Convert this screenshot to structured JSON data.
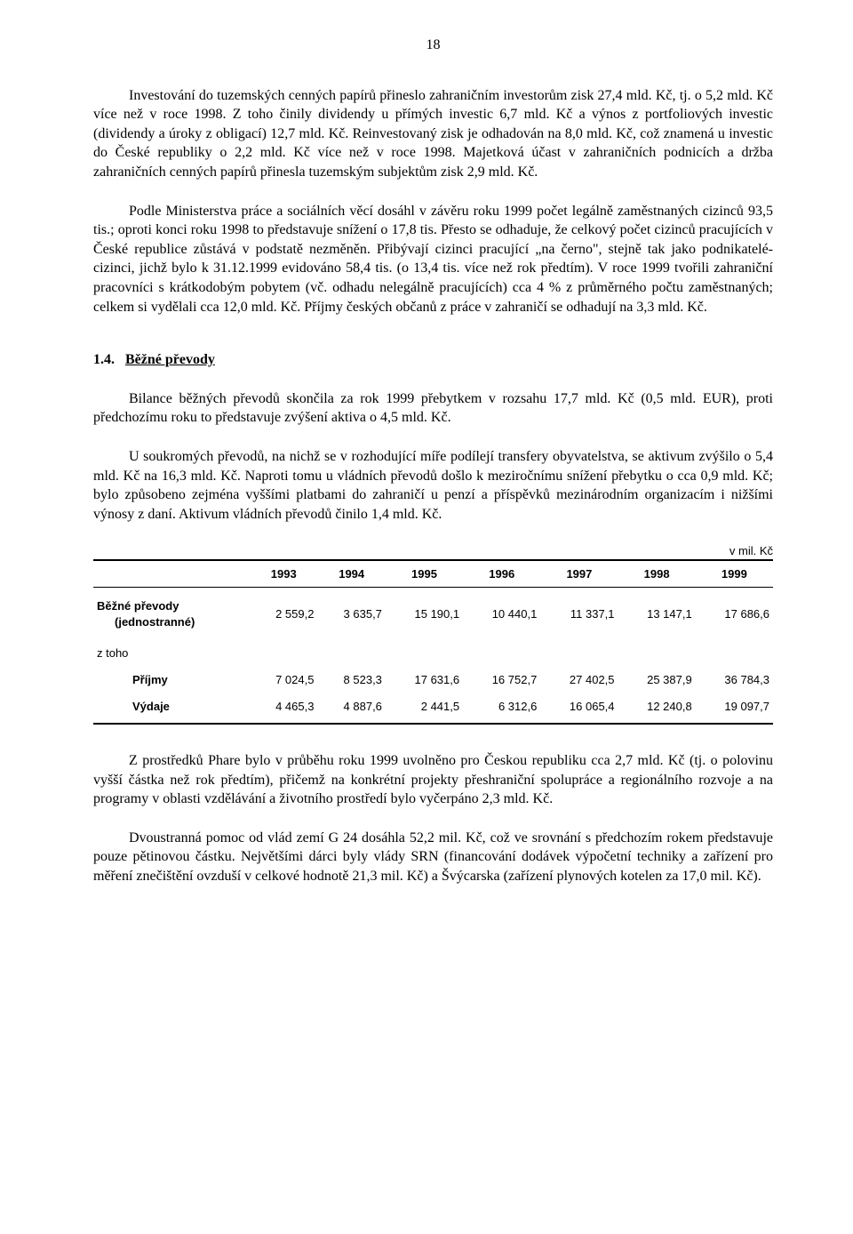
{
  "page_number": "18",
  "paragraphs": {
    "p1": "Investování do tuzemských cenných papírů přineslo zahraničním investorům zisk 27,4 mld. Kč, tj. o 5,2 mld. Kč více než v roce 1998. Z toho činily dividendy u přímých investic 6,7 mld. Kč a výnos z portfoliových investic (dividendy a úroky z obligací) 12,7 mld. Kč. Reinvestovaný zisk je odhadován na 8,0 mld. Kč, což znamená u investic do České republiky o 2,2 mld. Kč více než v roce 1998. Majetková účast v zahraničních podnicích a držba zahraničních cenných papírů přinesla tuzemským subjektům zisk 2,9 mld. Kč.",
    "p2": "Podle Ministerstva práce a sociálních věcí dosáhl v závěru roku 1999 počet legálně zaměstnaných cizinců 93,5 tis.; oproti konci roku 1998 to představuje snížení o 17,8 tis. Přesto se odhaduje, že celkový počet cizinců pracujících v České republice zůstává v podstatě nezměněn. Přibývají cizinci pracující „na černo\", stejně tak jako podnikatelé-cizinci, jichž bylo k 31.12.1999 evidováno 58,4 tis. (o 13,4 tis. více než rok předtím). V roce 1999 tvořili zahraniční pracovníci s krátkodobým pobytem (vč. odhadu nelegálně pracujících) cca 4 % z průměrného počtu zaměstnaných; celkem si vydělali cca 12,0 mld. Kč. Příjmy českých občanů z práce v zahraničí se odhadují na 3,3 mld. Kč.",
    "p3": "Bilance běžných převodů skončila za rok 1999 přebytkem v rozsahu 17,7 mld. Kč (0,5 mld. EUR), proti předchozímu roku to představuje zvýšení aktiva o 4,5 mld. Kč.",
    "p4": "U soukromých převodů, na nichž se v rozhodující míře podílejí transfery obyvatelstva, se aktivum zvýšilo o 5,4 mld. Kč na 16,3 mld. Kč. Naproti tomu u vládních převodů došlo k meziročnímu snížení přebytku o cca 0,9 mld. Kč; bylo způsobeno zejména vyššími platbami do zahraničí u penzí a příspěvků mezinárodním organizacím i nižšími výnosy z daní. Aktivum vládních převodů činilo 1,4 mld. Kč.",
    "p5": "Z prostředků Phare bylo v průběhu roku 1999 uvolněno pro Českou republiku cca 2,7 mld. Kč (tj. o polovinu vyšší částka než rok předtím), přičemž na konkrétní projekty přeshraniční spolupráce a regionálního rozvoje a na programy v oblasti vzdělávání a životního prostředí bylo vyčerpáno 2,3 mld. Kč.",
    "p6": "Dvoustranná pomoc od vlád zemí G 24 dosáhla 52,2 mil. Kč, což ve srovnání s předchozím rokem představuje pouze pětinovou částku. Největšími dárci byly vlády SRN (financování dodávek výpočetní techniky a zařízení pro měření znečištění ovzduší v celkové hodnotě 21,3 mil. Kč) a Švýcarska (zařízení plynových kotelen za 17,0 mil. Kč)."
  },
  "section": {
    "number": "1.4.",
    "title": "Běžné převody"
  },
  "table": {
    "unit": "v mil. Kč",
    "years": [
      "1993",
      "1994",
      "1995",
      "1996",
      "1997",
      "1998",
      "1999"
    ],
    "rows": {
      "r1_label": "Běžné převody",
      "r1_sub": "(jednostranné)",
      "r1": [
        "2 559,2",
        "3 635,7",
        "15 190,1",
        "10 440,1",
        "11 337,1",
        "13 147,1",
        "17 686,6"
      ],
      "r2_label": "z toho",
      "r3_label": "Příjmy",
      "r3": [
        "7 024,5",
        "8 523,3",
        "17 631,6",
        "16 752,7",
        "27 402,5",
        "25 387,9",
        "36 784,3"
      ],
      "r4_label": "Výdaje",
      "r4": [
        "4 465,3",
        "4 887,6",
        "2 441,5",
        "6 312,6",
        "16 065,4",
        "12 240,8",
        "19 097,7"
      ]
    }
  }
}
